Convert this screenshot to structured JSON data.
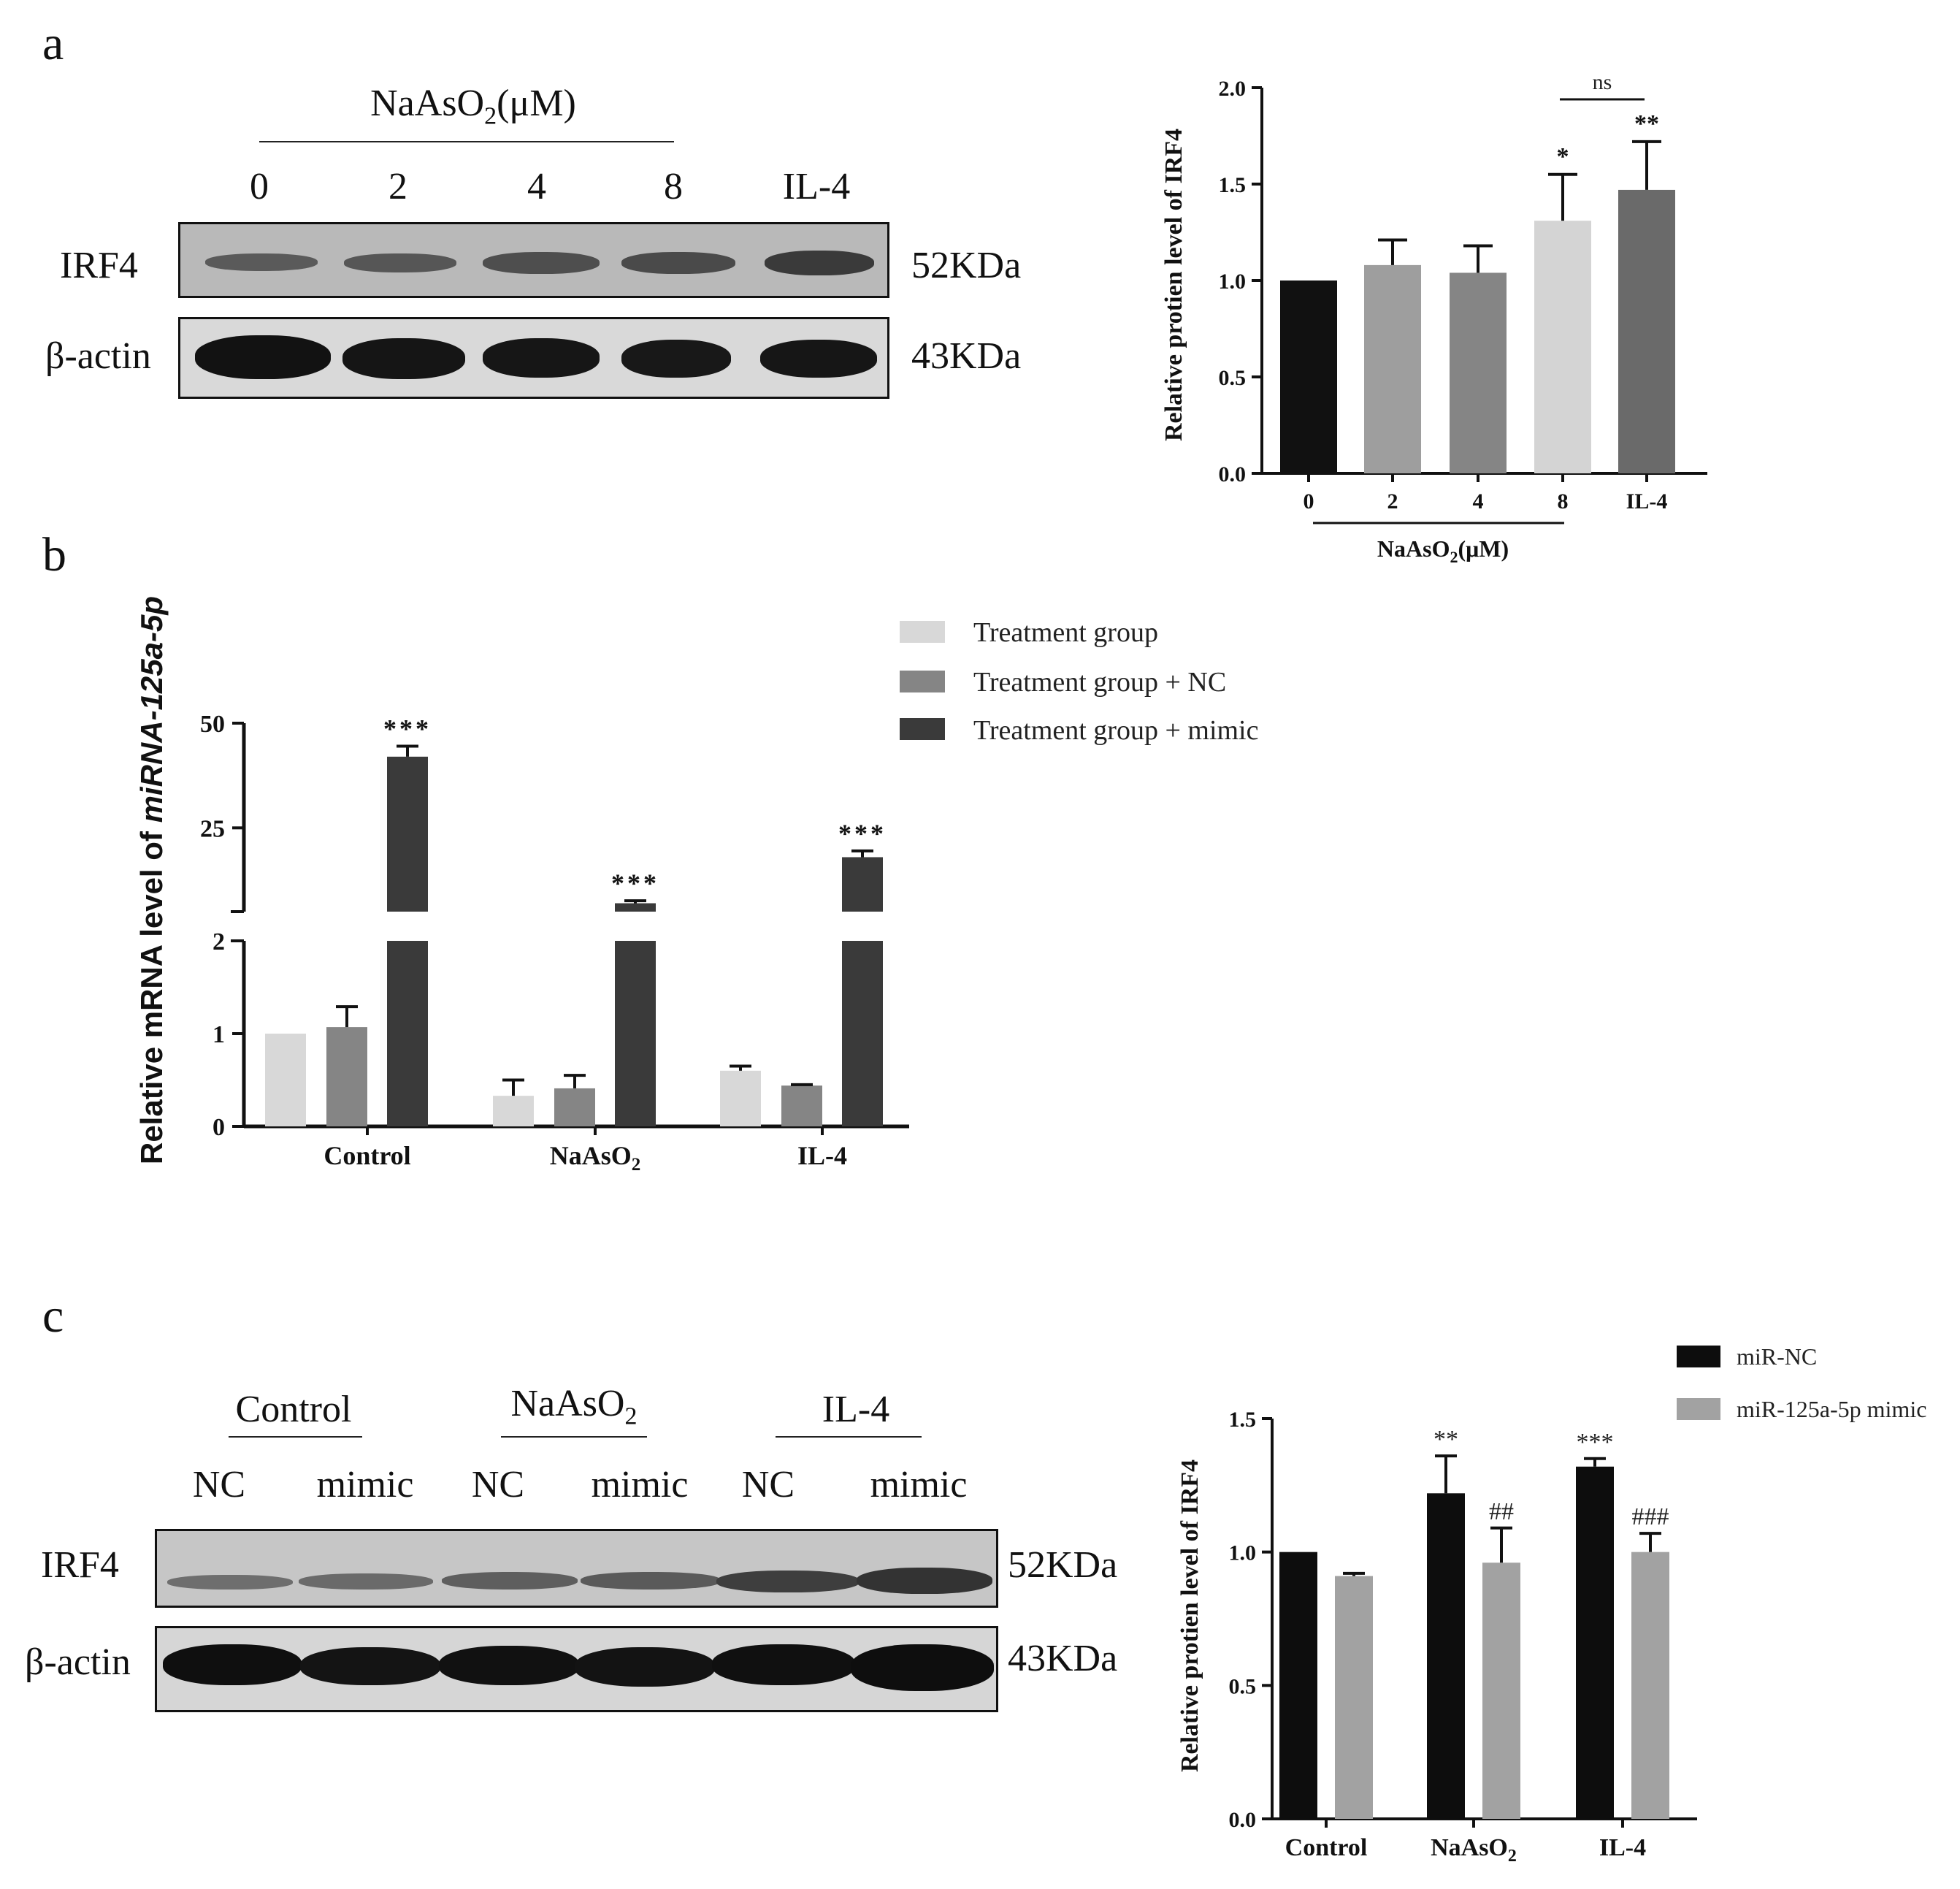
{
  "panels": {
    "a": "a",
    "b": "b",
    "c": "c"
  },
  "blot_a": {
    "treatment_header": "NaAsO",
    "treatment_sub": "2",
    "treatment_unit": "(μM)",
    "lanes": [
      "0",
      "2",
      "4",
      "8",
      "IL-4"
    ],
    "rows": [
      {
        "label": "IRF4",
        "size": "52KDa"
      },
      {
        "label": "β-actin",
        "size": "43KDa"
      }
    ]
  },
  "blot_c": {
    "groups": [
      {
        "name": "Control",
        "main": "Control",
        "sub": ""
      },
      {
        "name": "NaAsO2",
        "main": "NaAsO",
        "sub": "2"
      },
      {
        "name": "IL-4",
        "main": "IL-4",
        "sub": ""
      }
    ],
    "lanes": [
      "NC",
      "mimic",
      "NC",
      "mimic",
      "NC",
      "mimic"
    ],
    "rows": [
      {
        "label": "IRF4",
        "size": "52KDa"
      },
      {
        "label": "β-actin",
        "size": "43KDa"
      }
    ]
  },
  "chart_data": [
    {
      "id": "a-bar",
      "type": "bar",
      "categories": [
        "0",
        "2",
        "4",
        "8",
        "IL-4"
      ],
      "values": [
        1.0,
        1.08,
        1.04,
        1.31,
        1.47
      ],
      "errors": [
        0,
        0.13,
        0.14,
        0.24,
        0.25
      ],
      "bar_colors": [
        "#111111",
        "#9e9e9e",
        "#858585",
        "#d4d4d4",
        "#6a6a6a"
      ],
      "significance": [
        "",
        "",
        "",
        "*",
        "**"
      ],
      "bracket_label": "ns",
      "group_label_main": "NaAsO",
      "group_label_sub": "2",
      "group_label_unit": "(μM)",
      "ylabel": "Relative protien level of IRF4",
      "yticks": [
        "0.0",
        "0.5",
        "1.0",
        "1.5",
        "2.0"
      ],
      "ylim": [
        0,
        2.0
      ]
    },
    {
      "id": "b-bar",
      "type": "bar",
      "categories": [
        "Control",
        "NaAsO2",
        "IL-4"
      ],
      "category_labels": [
        {
          "main": "Control",
          "sub": ""
        },
        {
          "main": "NaAsO",
          "sub": "2"
        },
        {
          "main": "IL-4",
          "sub": ""
        }
      ],
      "series": [
        {
          "name": "Treatment group",
          "color": "#d8d8d8",
          "values": [
            1.0,
            0.33,
            0.6
          ],
          "errors": [
            0,
            0.17,
            0.05
          ]
        },
        {
          "name": "Treatment group + NC",
          "color": "#858585",
          "values": [
            1.07,
            0.41,
            0.44
          ],
          "errors": [
            0.22,
            0.14,
            0.01
          ]
        },
        {
          "name": "Treatment group + mimic",
          "color": "#3a3a3a",
          "values": [
            42,
            7,
            18
          ],
          "errors": [
            2.5,
            0.6,
            1.5
          ]
        }
      ],
      "significance": [
        "***",
        "***",
        "***"
      ],
      "ylabel_main": "Relative mRNA level of ",
      "ylabel_gene": "miRNA-125a-5p",
      "y_axis_break": [
        2,
        5
      ],
      "yticks_lower": [
        "0",
        "1",
        "2"
      ],
      "yticks_upper": [
        "25",
        "50"
      ],
      "ylim": [
        0,
        50
      ]
    },
    {
      "id": "c-bar",
      "type": "bar",
      "categories": [
        "Control",
        "NaAsO2",
        "IL-4"
      ],
      "category_labels": [
        {
          "main": "Control",
          "sub": ""
        },
        {
          "main": "NaAsO",
          "sub": "2"
        },
        {
          "main": "IL-4",
          "sub": ""
        }
      ],
      "series": [
        {
          "name": "miR-NC",
          "color": "#0d0d0d",
          "values": [
            1.0,
            1.22,
            1.32
          ],
          "errors": [
            0,
            0.14,
            0.03
          ]
        },
        {
          "name": "miR-125a-5p mimic",
          "color": "#a2a2a2",
          "values": [
            0.91,
            0.96,
            1.0
          ],
          "errors": [
            0.01,
            0.13,
            0.07
          ]
        }
      ],
      "significance_nc": [
        "",
        "**",
        "***"
      ],
      "significance_mimic": [
        "",
        "##",
        "###"
      ],
      "ylabel": "Relative protien level of IRF4",
      "yticks": [
        "0.0",
        "0.5",
        "1.0",
        "1.5"
      ],
      "ylim": [
        0,
        1.5
      ]
    }
  ]
}
